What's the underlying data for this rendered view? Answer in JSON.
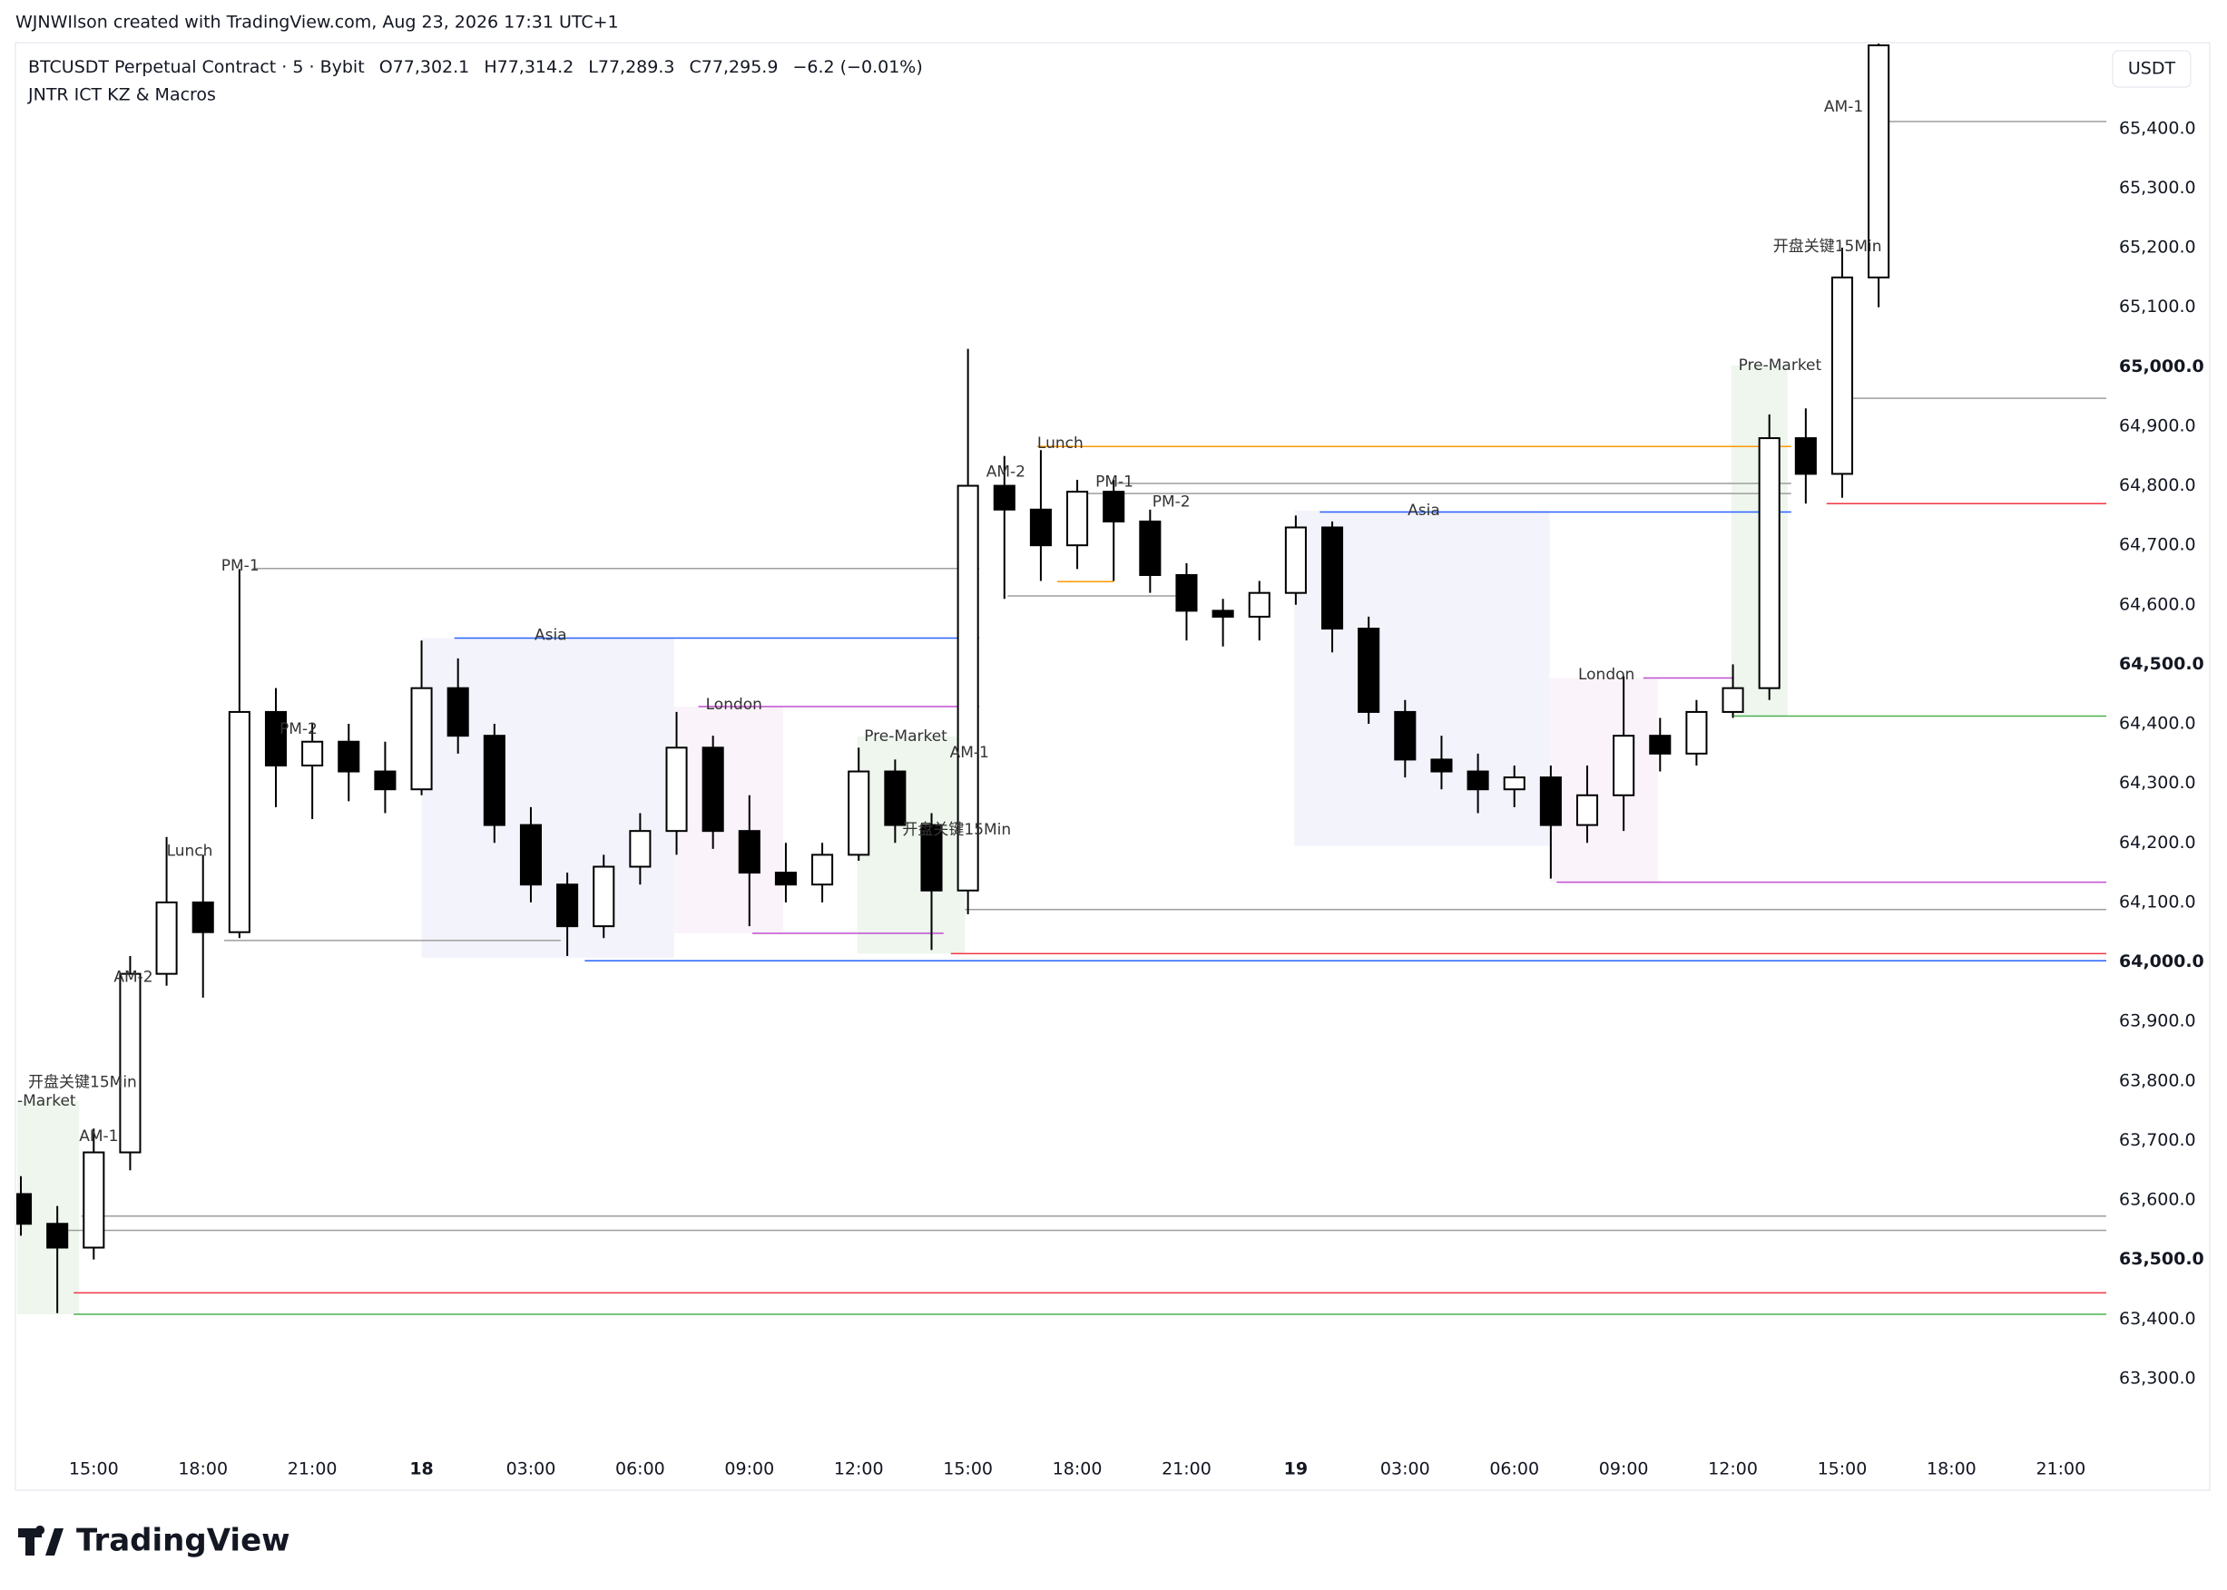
{
  "chart_data": {
    "type": "candlestick",
    "attribution": "WJNWIlson created with TradingView.com, Aug 23, 2026 17:31 UTC+1",
    "title": "BTCUSDT Perpetual Contract · 5 · Bybit",
    "legend_values": [
      "O77,302.1",
      "H77,314.2",
      "L77,289.3",
      "C77,295.9",
      "−6.2 (−0.01%)"
    ],
    "indicator": "JNTR ICT KZ & Macros",
    "currency": "USDT",
    "brand": "TradingView",
    "up_color": "#ffffff",
    "down_color": "#000000",
    "x": [
      13,
      14,
      15,
      16,
      17,
      18,
      19,
      20,
      21,
      22,
      23,
      24,
      25,
      26,
      27,
      28,
      29,
      30,
      31,
      32,
      33,
      34,
      35,
      36,
      37,
      38,
      39,
      40,
      41,
      42,
      43,
      44,
      45,
      46,
      47,
      48,
      49,
      50,
      51,
      52,
      53,
      54,
      55,
      56,
      57,
      58,
      59,
      60,
      61,
      62,
      63,
      64
    ],
    "open": [
      63610,
      63560,
      63520,
      63680,
      63980,
      64100,
      64050,
      64420,
      64330,
      64370,
      64320,
      64290,
      64460,
      64380,
      64230,
      64130,
      64060,
      64160,
      64220,
      64360,
      64220,
      64150,
      64130,
      64180,
      64320,
      64230,
      64120,
      64800,
      64760,
      64700,
      64790,
      64740,
      64650,
      64590,
      64580,
      64620,
      64730,
      64560,
      64420,
      64340,
      64320,
      64290,
      64310,
      64230,
      64280,
      64380,
      64350,
      64420,
      64460,
      64880,
      64820,
      65150
    ],
    "high": [
      63640,
      63590,
      63720,
      64010,
      64210,
      64180,
      64660,
      64460,
      64400,
      64400,
      64370,
      64540,
      64510,
      64400,
      64260,
      64150,
      64180,
      64250,
      64420,
      64380,
      64280,
      64200,
      64200,
      64360,
      64340,
      64250,
      65030,
      64850,
      64860,
      64810,
      64810,
      64760,
      64670,
      64610,
      64640,
      64750,
      64740,
      64580,
      64440,
      64380,
      64350,
      64330,
      64330,
      64330,
      64480,
      64410,
      64440,
      64500,
      64920,
      64930,
      65200,
      65560
    ],
    "low": [
      63540,
      63410,
      63500,
      63650,
      63960,
      63940,
      64040,
      64260,
      64240,
      64270,
      64250,
      64280,
      64350,
      64200,
      64100,
      64010,
      64040,
      64130,
      64180,
      64190,
      64060,
      64100,
      64100,
      64170,
      64200,
      64020,
      64080,
      64610,
      64640,
      64660,
      64640,
      64620,
      64540,
      64530,
      64540,
      64600,
      64520,
      64400,
      64310,
      64290,
      64250,
      64260,
      64140,
      64200,
      64220,
      64320,
      64330,
      64410,
      64440,
      64770,
      64780,
      65100
    ],
    "close": [
      63560,
      63520,
      63680,
      63980,
      64100,
      64050,
      64420,
      64330,
      64370,
      64320,
      64290,
      64460,
      64380,
      64230,
      64130,
      64060,
      64160,
      64220,
      64360,
      64220,
      64150,
      64130,
      64180,
      64320,
      64230,
      64120,
      64800,
      64760,
      64700,
      64790,
      64740,
      64650,
      64590,
      64580,
      64620,
      64730,
      64560,
      64420,
      64340,
      64320,
      64290,
      64310,
      64230,
      64280,
      64380,
      64350,
      64420,
      64460,
      64880,
      64820,
      65150,
      65540
    ],
    "xlim": [
      12.9,
      70.25
    ],
    "xticks": [
      {
        "value": 15,
        "label": "15:00"
      },
      {
        "value": 18,
        "label": "18:00"
      },
      {
        "value": 21,
        "label": "21:00"
      },
      {
        "value": 24,
        "label": "18"
      },
      {
        "value": 27,
        "label": "03:00"
      },
      {
        "value": 30,
        "label": "06:00"
      },
      {
        "value": 33,
        "label": "09:00"
      },
      {
        "value": 36,
        "label": "12:00"
      },
      {
        "value": 39,
        "label": "15:00"
      },
      {
        "value": 42,
        "label": "18:00"
      },
      {
        "value": 45,
        "label": "21:00"
      },
      {
        "value": 48,
        "label": "19"
      },
      {
        "value": 51,
        "label": "03:00"
      },
      {
        "value": 54,
        "label": "06:00"
      },
      {
        "value": 57,
        "label": "09:00"
      },
      {
        "value": 60,
        "label": "12:00"
      },
      {
        "value": 63,
        "label": "15:00"
      },
      {
        "value": 66,
        "label": "18:00"
      },
      {
        "value": 69,
        "label": "21:00"
      }
    ],
    "ylim": [
      63184,
      65543
    ],
    "yticks": [
      {
        "value": 63300,
        "label": "63,300.0"
      },
      {
        "value": 63400,
        "label": "63,400.0"
      },
      {
        "value": 63500,
        "label": "63,500.0"
      },
      {
        "value": 63600,
        "label": "63,600.0"
      },
      {
        "value": 63700,
        "label": "63,700.0"
      },
      {
        "value": 63800,
        "label": "63,800.0"
      },
      {
        "value": 63900,
        "label": "63,900.0"
      },
      {
        "value": 64000,
        "label": "64,000.0"
      },
      {
        "value": 64100,
        "label": "64,100.0"
      },
      {
        "value": 64200,
        "label": "64,200.0"
      },
      {
        "value": 64300,
        "label": "64,300.0"
      },
      {
        "value": 64400,
        "label": "64,400.0"
      },
      {
        "value": 64500,
        "label": "64,500.0"
      },
      {
        "value": 64600,
        "label": "64,600.0"
      },
      {
        "value": 64700,
        "label": "64,700.0"
      },
      {
        "value": 64800,
        "label": "64,800.0"
      },
      {
        "value": 64900,
        "label": "64,900.0"
      },
      {
        "value": 65000,
        "label": "65,000.0"
      },
      {
        "value": 65100,
        "label": "65,100.0"
      },
      {
        "value": 65200,
        "label": "65,200.0"
      },
      {
        "value": 65300,
        "label": "65,300.0"
      },
      {
        "value": 65400,
        "label": "65,400.0"
      }
    ],
    "sessions": [
      {
        "start": 12.9,
        "end": 14.6,
        "high": 63766,
        "low": 63408,
        "color": "#eef6ee"
      },
      {
        "start": 24,
        "end": 30.93,
        "high": 64544,
        "low": 64007,
        "color": "#f3f3fb"
      },
      {
        "start": 30.93,
        "end": 33.93,
        "high": 64429,
        "low": 64048,
        "color": "#faf3fa"
      },
      {
        "start": 35.96,
        "end": 38.92,
        "high": 64379,
        "low": 64014,
        "color": "#eef6ee"
      },
      {
        "start": 47.96,
        "end": 54.97,
        "high": 64758,
        "low": 64195,
        "color": "#f3f3fb"
      },
      {
        "start": 54.97,
        "end": 57.93,
        "high": 64477,
        "low": 64134,
        "color": "#faf3fa"
      },
      {
        "start": 59.96,
        "end": 61.5,
        "high": 65002,
        "low": 64413,
        "color": "#eef6ee"
      }
    ],
    "levels": [
      {
        "price": 63573,
        "start": 14.66,
        "end": 70.25,
        "color": "#9e9e9e"
      },
      {
        "price": 63549,
        "start": 14.16,
        "end": 70.25,
        "color": "#9e9e9e"
      },
      {
        "price": 63444,
        "start": 14.45,
        "end": 70.25,
        "color": "#f23645"
      },
      {
        "price": 63408,
        "start": 14.45,
        "end": 70.25,
        "color": "#4caf50"
      },
      {
        "price": 64661,
        "start": 19.36,
        "end": 39.31,
        "color": "#9e9e9e"
      },
      {
        "price": 64544,
        "start": 24.9,
        "end": 39.31,
        "color": "#2962ff"
      },
      {
        "price": 64429,
        "start": 31.6,
        "end": 39.31,
        "color": "#c04fd0"
      },
      {
        "price": 64048,
        "start": 33.08,
        "end": 38.33,
        "color": "#c04fd0"
      },
      {
        "price": 64036,
        "start": 18.58,
        "end": 27.82,
        "color": "#9e9e9e"
      },
      {
        "price": 64002,
        "start": 28.48,
        "end": 70.25,
        "color": "#2962ff"
      },
      {
        "price": 64014,
        "start": 38.53,
        "end": 70.25,
        "color": "#f23645"
      },
      {
        "price": 64088,
        "start": 38.92,
        "end": 70.25,
        "color": "#9e9e9e"
      },
      {
        "price": 64866,
        "start": 40.9,
        "end": 61.6,
        "color": "#ff9800"
      },
      {
        "price": 64804,
        "start": 43.09,
        "end": 61.6,
        "color": "#9e9e9e"
      },
      {
        "price": 64787,
        "start": 42.04,
        "end": 61.6,
        "color": "#9e9e9e"
      },
      {
        "price": 64756,
        "start": 48.66,
        "end": 61.6,
        "color": "#2962ff"
      },
      {
        "price": 64615,
        "start": 40.09,
        "end": 44.96,
        "color": "#9e9e9e"
      },
      {
        "price": 64639,
        "start": 41.45,
        "end": 43.0,
        "color": "#ff9800"
      },
      {
        "price": 64477,
        "start": 57.54,
        "end": 60.03,
        "color": "#c04fd0"
      },
      {
        "price": 64134,
        "start": 55.16,
        "end": 70.25,
        "color": "#c04fd0"
      },
      {
        "price": 64413,
        "start": 60.03,
        "end": 70.25,
        "color": "#4caf50"
      },
      {
        "price": 64770,
        "start": 62.57,
        "end": 70.25,
        "color": "#f23645"
      },
      {
        "price": 64947,
        "start": 62.76,
        "end": 70.25,
        "color": "#9e9e9e"
      },
      {
        "price": 65412,
        "start": 63.7,
        "end": 70.25,
        "color": "#9e9e9e"
      }
    ],
    "annotations": [
      {
        "text": "开盘关键15Min",
        "x": 13.2,
        "y": 63797
      },
      {
        "text": "-Market",
        "x": 12.9,
        "y": 63766
      },
      {
        "text": "AM-1",
        "x": 14.6,
        "y": 63707
      },
      {
        "text": "AM-2",
        "x": 15.55,
        "y": 63974
      },
      {
        "text": "Lunch",
        "x": 17,
        "y": 64186
      },
      {
        "text": "PM-1",
        "x": 18.5,
        "y": 64665
      },
      {
        "text": "PM-2",
        "x": 20.1,
        "y": 64391
      },
      {
        "text": "Asia",
        "x": 27.1,
        "y": 64549
      },
      {
        "text": "London",
        "x": 31.8,
        "y": 64432
      },
      {
        "text": "Pre-Market",
        "x": 36.15,
        "y": 64379
      },
      {
        "text": "AM-1",
        "x": 38.5,
        "y": 64351
      },
      {
        "text": "开盘关键15Min",
        "x": 37.2,
        "y": 64222
      },
      {
        "text": "AM-2",
        "x": 39.5,
        "y": 64823
      },
      {
        "text": "Lunch",
        "x": 40.9,
        "y": 64871
      },
      {
        "text": "PM-1",
        "x": 42.5,
        "y": 64806
      },
      {
        "text": "PM-2",
        "x": 44.06,
        "y": 64773
      },
      {
        "text": "Asia",
        "x": 51.07,
        "y": 64758
      },
      {
        "text": "London",
        "x": 55.75,
        "y": 64482
      },
      {
        "text": "Pre-Market",
        "x": 60.15,
        "y": 65002
      },
      {
        "text": "开盘关键15Min",
        "x": 61.1,
        "y": 65202
      },
      {
        "text": "AM-1",
        "x": 62.5,
        "y": 65436
      }
    ]
  }
}
